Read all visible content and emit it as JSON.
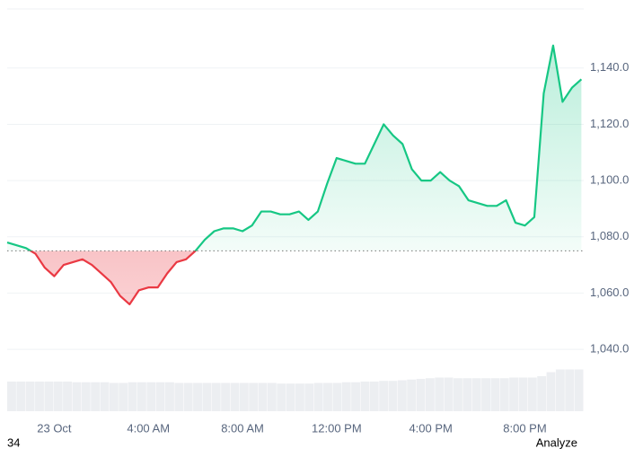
{
  "chart_data": {
    "type": "line",
    "x": [
      -2,
      -1.6,
      -1.2,
      -0.8,
      -0.4,
      0,
      0.4,
      0.8,
      1.2,
      1.6,
      2,
      2.4,
      2.8,
      3.2,
      3.6,
      4,
      4.4,
      4.8,
      5.2,
      5.6,
      6,
      6.4,
      6.8,
      7.2,
      7.6,
      8,
      8.4,
      8.8,
      9.2,
      9.6,
      10,
      10.4,
      10.8,
      11.2,
      11.6,
      12,
      12.4,
      12.8,
      13.2,
      13.6,
      14,
      14.4,
      14.8,
      15.2,
      15.6,
      16,
      16.4,
      16.8,
      17.2,
      17.6,
      18,
      18.4,
      18.8,
      19.2,
      19.6,
      20,
      20.4,
      20.8,
      21.2,
      21.6,
      22,
      22.4
    ],
    "series": [
      {
        "color": "#16c784",
        "down_color": "#ea3943",
        "values": [
          1078,
          1077,
          1076,
          1074,
          1069,
          1066,
          1070,
          1071,
          1072,
          1070,
          1067,
          1064,
          1059,
          1056,
          1061,
          1062,
          1062,
          1067,
          1071,
          1072,
          1075,
          1079,
          1082,
          1083,
          1083,
          1082,
          1084,
          1089,
          1089,
          1088,
          1088,
          1089,
          1086,
          1089,
          1099,
          1108,
          1107,
          1106,
          1106,
          1113,
          1120,
          1116,
          1113,
          1104,
          1100,
          1100,
          1103,
          1100,
          1098,
          1093,
          1092,
          1091,
          1091,
          1093,
          1085,
          1084,
          1087,
          1131,
          1148,
          1128,
          1133,
          1136
        ]
      }
    ],
    "volume": [
      44,
      44,
      44,
      44,
      44,
      44,
      44,
      43,
      43,
      43,
      43,
      42,
      42,
      43,
      43,
      43,
      43,
      43,
      42,
      42,
      42,
      42,
      42,
      42,
      42,
      42,
      42,
      42,
      42,
      41,
      41,
      41,
      41,
      42,
      42,
      42,
      43,
      43,
      44,
      44,
      45,
      45,
      46,
      47,
      48,
      49,
      50,
      50,
      49,
      49,
      49,
      49,
      49,
      49,
      50,
      50,
      50,
      52,
      58,
      62,
      62,
      62
    ],
    "baseline": 1075,
    "xlim": [
      -2,
      22.5
    ],
    "xticks": [
      {
        "value": 0,
        "label": "23 Oct"
      },
      {
        "value": 4,
        "label": "4:00 AM"
      },
      {
        "value": 8,
        "label": "8:00 AM"
      },
      {
        "value": 12,
        "label": "12:00 PM"
      },
      {
        "value": 16,
        "label": "4:00 PM"
      },
      {
        "value": 20,
        "label": "8:00 PM"
      }
    ],
    "ylim": [
      1018,
      1161
    ],
    "yticks": [
      {
        "value": 1040,
        "label": "1,040.0"
      },
      {
        "value": 1060,
        "label": "1,060.0"
      },
      {
        "value": 1080,
        "label": "1,080.0"
      },
      {
        "value": 1100,
        "label": "1,100.0"
      },
      {
        "value": 1120,
        "label": "1,120.0"
      },
      {
        "value": 1140,
        "label": "1,140.0"
      }
    ],
    "grid": true,
    "footer_left": "34",
    "footer_right": "Analyze"
  }
}
